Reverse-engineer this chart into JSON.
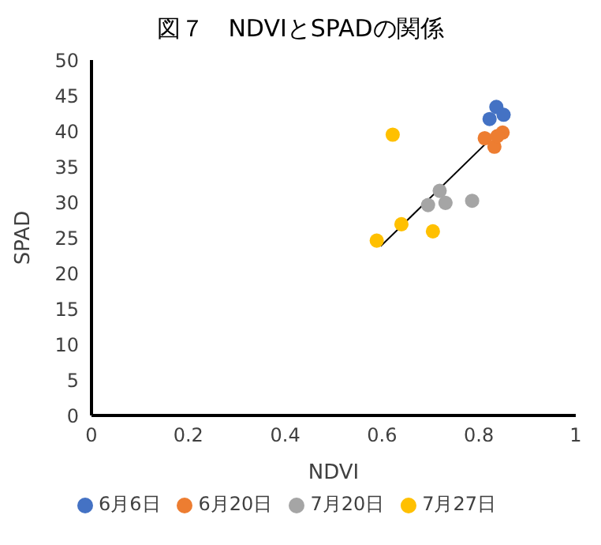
{
  "chart_data": {
    "type": "scatter",
    "title": "図７　NDVIとSPADの関係",
    "xlabel": "NDVI",
    "ylabel": "SPAD",
    "xlim": [
      0,
      1
    ],
    "xticks": [
      0,
      0.2,
      0.4,
      0.6,
      0.8,
      1
    ],
    "ylim": [
      0,
      50
    ],
    "yticks": [
      0,
      5,
      10,
      15,
      20,
      25,
      30,
      35,
      40,
      45,
      50
    ],
    "grid": false,
    "legend": "bottom",
    "marker": "circle",
    "series": [
      {
        "name": "6月6日",
        "color": "#4472c4",
        "x": [
          0.836,
          0.822,
          0.851
        ],
        "values": [
          43.4,
          41.7,
          42.3
        ]
      },
      {
        "name": "6月20日",
        "color": "#ed7d31",
        "x": [
          0.812,
          0.849,
          0.832,
          0.838
        ],
        "values": [
          39.0,
          39.8,
          37.8,
          39.3
        ]
      },
      {
        "name": "7月20日",
        "color": "#a5a5a5",
        "x": [
          0.719,
          0.695,
          0.731,
          0.786
        ],
        "values": [
          31.6,
          29.6,
          29.9,
          30.2
        ]
      },
      {
        "name": "7月27日",
        "color": "#ffc000",
        "x": [
          0.622,
          0.64,
          0.589,
          0.705
        ],
        "values": [
          39.5,
          26.9,
          24.6,
          25.9
        ]
      },
      {
        "type": "line",
        "marker": "none",
        "color": "#000000",
        "x": [
          0.597,
          0.842
        ],
        "values": [
          23.8,
          40.1
        ]
      }
    ]
  }
}
